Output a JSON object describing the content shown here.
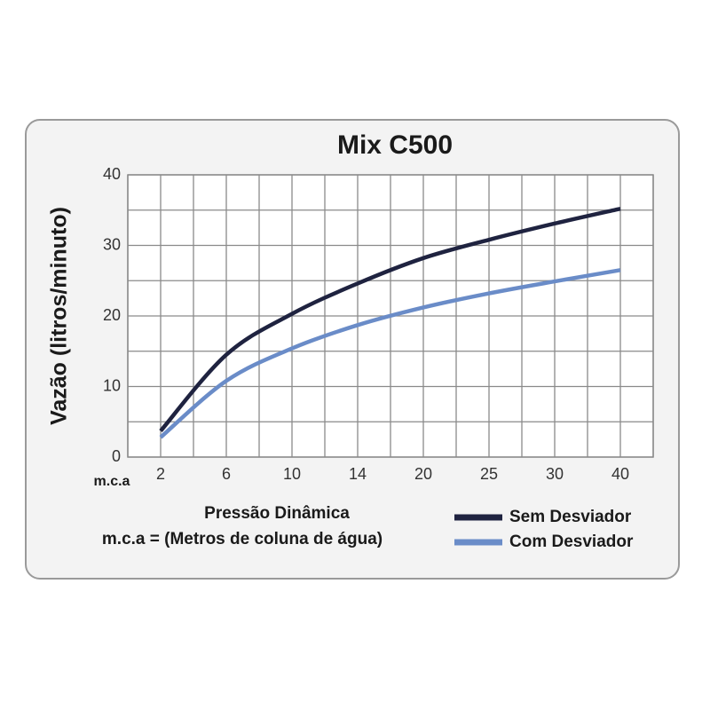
{
  "chart_data": {
    "type": "line",
    "title": "Mix C500",
    "ylabel": "Vazão (litros/minuto)",
    "xlabel": "Pressão Dinâmica",
    "x_unit": "m.c.a",
    "note": "m.c.a = (Metros de coluna de água)",
    "categories": [
      "2",
      "6",
      "10",
      "14",
      "20",
      "25",
      "30",
      "40"
    ],
    "series": [
      {
        "name": "Sem Desviador",
        "color": "#1f2340",
        "values": [
          3.7,
          14.5,
          20.3,
          24.6,
          28.2,
          30.8,
          33.1,
          35.2
        ]
      },
      {
        "name": "Com Desviador",
        "color": "#6a8cc8",
        "values": [
          2.8,
          10.8,
          15.4,
          18.7,
          21.2,
          23.2,
          24.9,
          26.5
        ]
      }
    ],
    "ylim": [
      0,
      40
    ],
    "yticks": [
      0,
      10,
      20,
      30,
      40
    ],
    "grid": true,
    "minor_grid": true,
    "legend": "lower right"
  }
}
